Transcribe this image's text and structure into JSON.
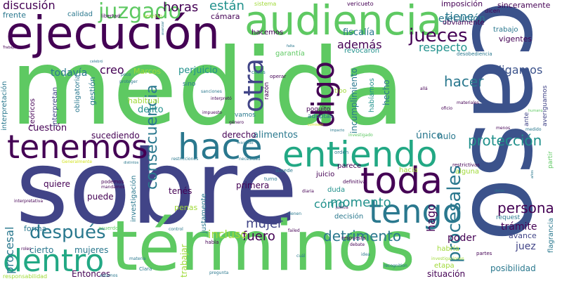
{
  "palette": {
    "dark_purple": "#440154",
    "indigo": "#3b528b",
    "navy": "#414487",
    "teal": "#2a788e",
    "sea": "#21918c",
    "green": "#22a884",
    "mint": "#5ec962",
    "lime": "#a0da39",
    "yellow": "#d2e21b"
  },
  "words": [
    {
      "text": "medida",
      "color": "mint"
    },
    {
      "text": "sobre",
      "color": "navy"
    },
    {
      "text": "caso",
      "color": "indigo"
    },
    {
      "text": "términos",
      "color": "mint"
    },
    {
      "text": "ejecución",
      "color": "dark_purple"
    },
    {
      "text": "audiencia",
      "color": "mint"
    },
    {
      "text": "entiendo",
      "color": "green"
    },
    {
      "text": "tenemos",
      "color": "dark_purple"
    },
    {
      "text": "hace",
      "color": "teal"
    },
    {
      "text": "toda",
      "color": "dark_purple"
    },
    {
      "text": "tengo",
      "color": "teal"
    },
    {
      "text": "dentro",
      "color": "green"
    },
    {
      "text": "digo",
      "color": "dark_purple"
    },
    {
      "text": "otra",
      "color": "navy"
    },
    {
      "text": "juzgado",
      "color": "mint"
    },
    {
      "text": "jueces",
      "color": "dark_purple"
    },
    {
      "text": "procesales",
      "color": "teal"
    },
    {
      "text": "después",
      "color": "teal"
    },
    {
      "text": "protección",
      "color": "sea"
    },
    {
      "text": "consecuencia",
      "color": "teal"
    },
    {
      "text": "persona",
      "color": "dark_purple"
    },
    {
      "text": "detrimento",
      "color": "teal"
    },
    {
      "text": "fuero",
      "color": "dark_purple"
    },
    {
      "text": "momento",
      "color": "sea"
    },
    {
      "text": "mujer",
      "color": "navy"
    },
    {
      "text": "hacer",
      "color": "teal"
    },
    {
      "text": "digamos",
      "color": "indigo"
    },
    {
      "text": "respecto",
      "color": "sea"
    },
    {
      "text": "además",
      "color": "dark_purple"
    },
    {
      "text": "discusión",
      "color": "dark_purple"
    },
    {
      "text": "horas",
      "color": "dark_purple"
    },
    {
      "text": "están",
      "color": "sea"
    },
    {
      "text": "ejecución",
      "color": "teal"
    },
    {
      "text": "tiene",
      "color": "teal"
    },
    {
      "text": "creo",
      "color": "dark_purple"
    },
    {
      "text": "procesal",
      "color": "teal"
    },
    {
      "text": "cómo",
      "color": "sea"
    },
    {
      "text": "incluso",
      "color": "lime"
    },
    {
      "text": "hago",
      "color": "dark_purple"
    },
    {
      "text": "trabajar",
      "color": "lime"
    },
    {
      "text": "todavía",
      "color": "teal"
    },
    {
      "text": "delito",
      "color": "sea"
    },
    {
      "text": "perjuicio",
      "color": "sea"
    },
    {
      "text": "fiscalía",
      "color": "teal"
    },
    {
      "text": "cuestión",
      "color": "dark_purple"
    },
    {
      "text": "sucediendo",
      "color": "dark_purple"
    },
    {
      "text": "alimentos",
      "color": "teal"
    },
    {
      "text": "derecho",
      "color": "dark_purple"
    },
    {
      "text": "primera",
      "color": "dark_purple"
    },
    {
      "text": "único",
      "color": "teal"
    },
    {
      "text": "nulo",
      "color": "teal"
    },
    {
      "text": "trámite",
      "color": "dark_purple"
    },
    {
      "text": "juez",
      "color": "navy"
    },
    {
      "text": "poder",
      "color": "dark_purple"
    },
    {
      "text": "posibilidad",
      "color": "teal"
    },
    {
      "text": "situación",
      "color": "dark_purple"
    },
    {
      "text": "Entonces",
      "color": "dark_purple"
    },
    {
      "text": "mujeres",
      "color": "teal"
    },
    {
      "text": "cierto",
      "color": "teal"
    },
    {
      "text": "quiere",
      "color": "dark_purple"
    },
    {
      "text": "forma",
      "color": "teal"
    },
    {
      "text": "puede",
      "color": "dark_purple"
    },
    {
      "text": "tenés",
      "color": "dark_purple"
    },
    {
      "text": "penas",
      "color": "lime"
    },
    {
      "text": "habitual",
      "color": "lime"
    },
    {
      "text": "gestión",
      "color": "teal"
    },
    {
      "text": "Marcos",
      "color": "lime"
    },
    {
      "text": "frente",
      "color": "teal"
    },
    {
      "text": "calidad",
      "color": "teal"
    },
    {
      "text": "cámara",
      "color": "dark_purple"
    },
    {
      "text": "sinceramente",
      "color": "dark_purple"
    },
    {
      "text": "imposición",
      "color": "dark_purple"
    },
    {
      "text": "obviamente",
      "color": "dark_purple"
    },
    {
      "text": "trabajo",
      "color": "teal"
    },
    {
      "text": "vigentes",
      "color": "dark_purple"
    },
    {
      "text": "avance",
      "color": "navy"
    },
    {
      "text": "hacemos",
      "color": "dark_purple"
    },
    {
      "text": "garantía",
      "color": "mint"
    },
    {
      "text": "revocaron",
      "color": "sea"
    },
    {
      "text": "incumplimiento",
      "color": "teal"
    },
    {
      "text": "hecho",
      "color": "teal"
    },
    {
      "text": "habíamos",
      "color": "sea"
    },
    {
      "text": "obligatoria",
      "color": "teal"
    },
    {
      "text": "interpretación",
      "color": "teal"
    },
    {
      "text": "teóricos",
      "color": "dark_purple"
    },
    {
      "text": "interpretan",
      "color": "navy"
    },
    {
      "text": "investigación",
      "color": "teal"
    },
    {
      "text": "justamente",
      "color": "teal"
    },
    {
      "text": "parece",
      "color": "dark_purple"
    },
    {
      "text": "juicio",
      "color": "dark_purple"
    },
    {
      "text": "decisión",
      "color": "teal"
    },
    {
      "text": "duda",
      "color": "sea"
    },
    {
      "text": "hacia",
      "color": "lime"
    },
    {
      "text": "alguna",
      "color": "lime"
    },
    {
      "text": "habría",
      "color": "lime"
    },
    {
      "text": "etapa",
      "color": "lime"
    },
    {
      "text": "flagrancia",
      "color": "teal"
    },
    {
      "text": "request",
      "color": "teal"
    },
    {
      "text": "partir",
      "color": "mint"
    },
    {
      "text": "ante",
      "color": "navy"
    },
    {
      "text": "averiguamos",
      "color": "navy"
    },
    {
      "text": "adoptas",
      "color": "teal"
    },
    {
      "text": "poquito",
      "color": "dark_purple"
    },
    {
      "text": "vamos",
      "color": "teal"
    },
    {
      "text": "sino",
      "color": "teal"
    },
    {
      "text": "razón",
      "color": "dark_purple"
    },
    {
      "text": "tipo",
      "color": "lime"
    },
    {
      "text": "responsabilidad",
      "color": "lime"
    },
    {
      "text": "dicen",
      "color": "dark_purple"
    },
    {
      "text": "vericueto",
      "color": "dark_purple"
    },
    {
      "text": "sistema",
      "color": "lime"
    },
    {
      "text": "servicio",
      "color": "lime"
    },
    {
      "text": "libertad",
      "color": "dark_purple"
    },
    {
      "text": "desobediencia",
      "color": "teal"
    },
    {
      "text": "cosas",
      "color": "teal"
    },
    {
      "text": "operar",
      "color": "dark_purple"
    },
    {
      "text": "restrictivas",
      "color": "dark_purple"
    },
    {
      "text": "sucede",
      "color": "teal"
    },
    {
      "text": "turno",
      "color": "teal"
    },
    {
      "text": "orden",
      "color": "teal"
    },
    {
      "text": "podemos",
      "color": "dark_purple"
    },
    {
      "text": "mandamos",
      "color": "dark_purple"
    },
    {
      "text": "acuerdo",
      "color": "mint"
    },
    {
      "text": "control",
      "color": "teal"
    },
    {
      "text": "pregunta",
      "color": "teal"
    },
    {
      "text": "estamos",
      "color": "teal"
    },
    {
      "text": "debate",
      "color": "dark_purple"
    },
    {
      "text": "failed",
      "color": "dark_purple"
    },
    {
      "text": "tienen",
      "color": "teal"
    },
    {
      "text": "habla",
      "color": "dark_purple"
    },
    {
      "text": "respuesta",
      "color": "dark_purple"
    },
    {
      "text": "definitiva",
      "color": "dark_purple"
    },
    {
      "text": "diaria",
      "color": "dark_purple"
    },
    {
      "text": "recognition",
      "color": "teal"
    },
    {
      "text": "investigaciones",
      "color": "lime"
    },
    {
      "text": "partes",
      "color": "dark_purple"
    },
    {
      "text": "menos",
      "color": "dark_purple"
    },
    {
      "text": "medido",
      "color": "teal"
    },
    {
      "text": "Clara",
      "color": "teal"
    },
    {
      "text": "materia",
      "color": "teal"
    },
    {
      "text": "roles",
      "color": "dark_purple"
    },
    {
      "text": "idea",
      "color": "teal"
    },
    {
      "text": "cuál",
      "color": "teal"
    },
    {
      "text": "impuesto",
      "color": "dark_purple"
    },
    {
      "text": "interpretó",
      "color": "dark_purple"
    },
    {
      "text": "sanciones",
      "color": "teal"
    },
    {
      "text": "proteger",
      "color": "teal"
    },
    {
      "text": "poco",
      "color": "teal"
    },
    {
      "text": "oficio",
      "color": "dark_purple"
    },
    {
      "text": "materiales",
      "color": "dark_purple"
    },
    {
      "text": "allá",
      "color": "dark_purple"
    },
    {
      "text": "impacto",
      "color": "teal"
    },
    {
      "text": "investigado",
      "color": "mint"
    },
    {
      "text": "restricciones",
      "color": "teal"
    },
    {
      "text": "necesidad",
      "color": "teal"
    },
    {
      "text": "distintos",
      "color": "teal"
    },
    {
      "text": "Generalmente",
      "color": "yellow"
    },
    {
      "text": "interpretativa",
      "color": "dark_purple"
    },
    {
      "text": "género",
      "color": "dark_purple"
    },
    {
      "text": "Trabajamos",
      "color": "dark_purple"
    },
    {
      "text": "avanzar",
      "color": "teal"
    },
    {
      "text": "celebró",
      "color": "teal"
    },
    {
      "text": "comisión",
      "color": "yellow"
    },
    {
      "text": "iniciando",
      "color": "teal"
    },
    {
      "text": "años",
      "color": "teal"
    },
    {
      "text": "datos",
      "color": "teal"
    },
    {
      "text": "falta",
      "color": "teal"
    },
    {
      "text": "justicia",
      "color": "dark_purple"
    },
    {
      "text": "humano",
      "color": "mint"
    }
  ]
}
